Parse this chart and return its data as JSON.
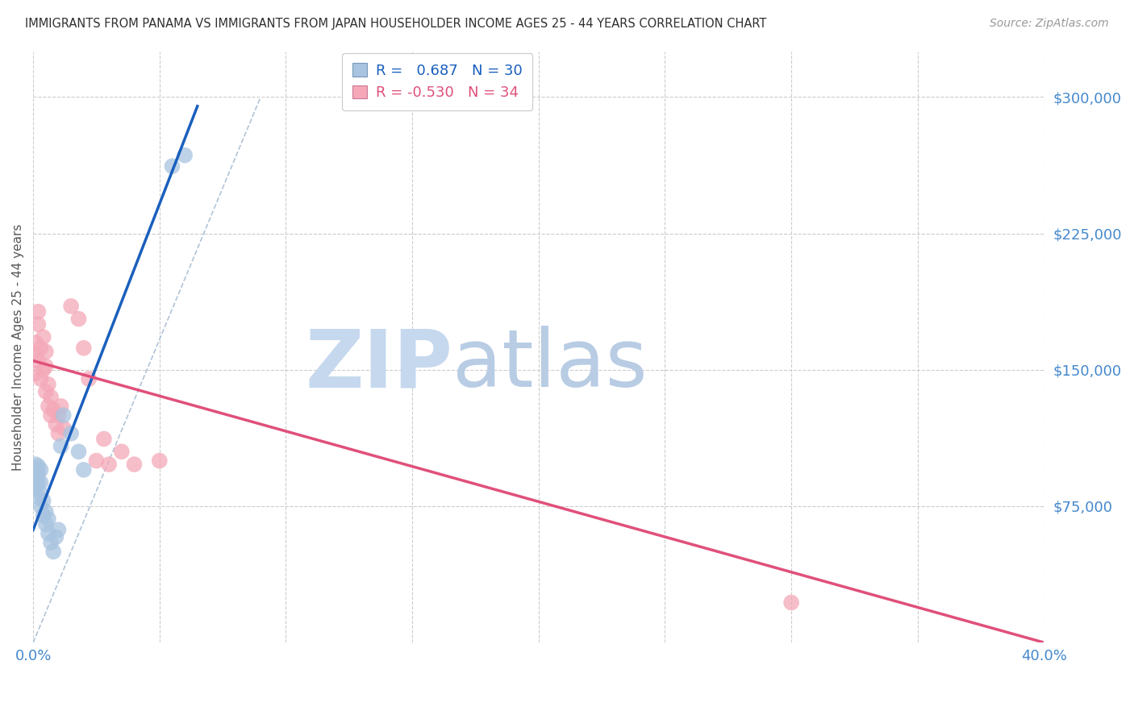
{
  "title": "IMMIGRANTS FROM PANAMA VS IMMIGRANTS FROM JAPAN HOUSEHOLDER INCOME AGES 25 - 44 YEARS CORRELATION CHART",
  "source": "Source: ZipAtlas.com",
  "ylabel": "Householder Income Ages 25 - 44 years",
  "xlim": [
    0.0,
    0.4
  ],
  "ylim": [
    0,
    325000
  ],
  "yticks": [
    0,
    75000,
    150000,
    225000,
    300000
  ],
  "xticks": [
    0.0,
    0.05,
    0.1,
    0.15,
    0.2,
    0.25,
    0.3,
    0.35,
    0.4
  ],
  "panama_color": "#a8c4e0",
  "japan_color": "#f4a8b8",
  "panama_line_color": "#1a5fbd",
  "japan_line_color": "#e0507a",
  "panama_R": 0.687,
  "panama_N": 30,
  "japan_R": -0.53,
  "japan_N": 34,
  "panama_x": [
    0.001,
    0.001,
    0.001,
    0.001,
    0.001,
    0.002,
    0.002,
    0.002,
    0.002,
    0.003,
    0.003,
    0.003,
    0.003,
    0.004,
    0.004,
    0.005,
    0.005,
    0.006,
    0.006,
    0.007,
    0.008,
    0.009,
    0.01,
    0.011,
    0.012,
    0.015,
    0.018,
    0.02,
    0.055,
    0.06
  ],
  "panama_y": [
    88000,
    92000,
    95000,
    98000,
    85000,
    80000,
    88000,
    93000,
    97000,
    75000,
    82000,
    88000,
    95000,
    70000,
    78000,
    65000,
    72000,
    60000,
    68000,
    55000,
    50000,
    58000,
    62000,
    108000,
    125000,
    115000,
    105000,
    95000,
    262000,
    268000
  ],
  "japan_x": [
    0.001,
    0.001,
    0.001,
    0.002,
    0.002,
    0.002,
    0.003,
    0.003,
    0.004,
    0.004,
    0.005,
    0.005,
    0.005,
    0.006,
    0.006,
    0.007,
    0.007,
    0.008,
    0.009,
    0.01,
    0.01,
    0.011,
    0.012,
    0.015,
    0.018,
    0.02,
    0.022,
    0.025,
    0.028,
    0.03,
    0.035,
    0.04,
    0.05,
    0.3
  ],
  "japan_y": [
    158000,
    148000,
    165000,
    175000,
    182000,
    155000,
    145000,
    162000,
    150000,
    168000,
    138000,
    152000,
    160000,
    130000,
    142000,
    125000,
    135000,
    128000,
    120000,
    115000,
    125000,
    130000,
    118000,
    185000,
    178000,
    162000,
    145000,
    100000,
    112000,
    98000,
    105000,
    98000,
    100000,
    22000
  ],
  "panama_line_x0": 0.0,
  "panama_line_y0": 62000,
  "panama_line_x1": 0.065,
  "panama_line_y1": 295000,
  "japan_line_x0": 0.0,
  "japan_line_y0": 155000,
  "japan_line_x1": 0.4,
  "japan_line_y1": 0,
  "ref_line_x0": 0.0,
  "ref_line_y0": 0,
  "ref_line_x1": 0.09,
  "ref_line_y1": 300000,
  "background_color": "#ffffff",
  "grid_color": "#cccccc",
  "title_color": "#303030",
  "axis_label_color": "#555555",
  "tick_label_color": "#4488cc",
  "watermark_zip_color": "#c5d8ee",
  "watermark_atlas_color": "#b8cce4"
}
